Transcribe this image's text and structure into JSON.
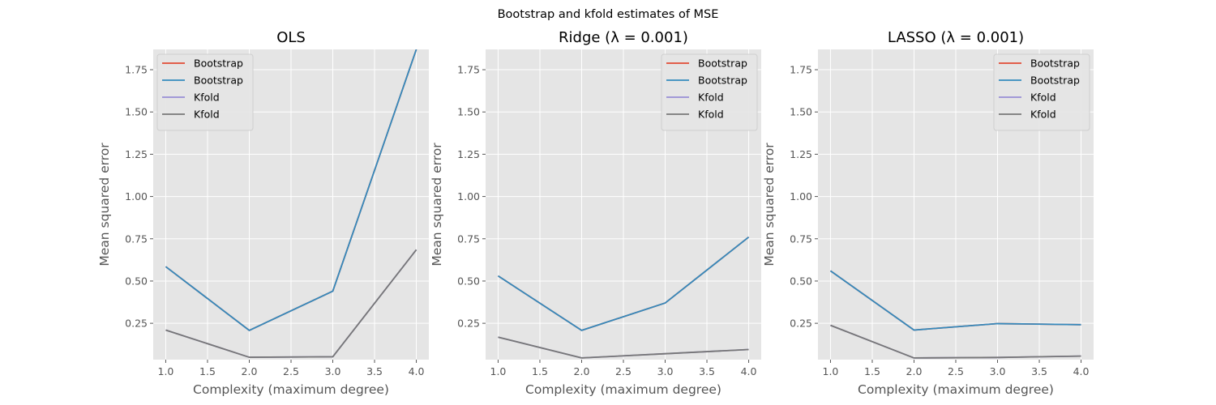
{
  "figure": {
    "suptitle": "Bootstrap and kfold estimates of MSE"
  },
  "chart_data": [
    {
      "type": "line",
      "title": "OLS",
      "xlabel": "Complexity  (maximum degree)",
      "ylabel": "Mean squared error",
      "xlim": [
        0.85,
        4.15
      ],
      "ylim": [
        0.035,
        1.87
      ],
      "x_ticks": [
        "1.0",
        "1.5",
        "2.0",
        "2.5",
        "3.0",
        "3.5",
        "4.0"
      ],
      "y_ticks": [
        "0.25",
        "0.50",
        "0.75",
        "1.00",
        "1.25",
        "1.50",
        "1.75"
      ],
      "grid": true,
      "legend_position": "top-left",
      "x": [
        1.0,
        2.0,
        3.0,
        4.0
      ],
      "series": [
        {
          "name": "Bootstrap",
          "color": "#E24A33",
          "values": [
            0.585,
            0.208,
            0.44,
            1.87
          ]
        },
        {
          "name": "Bootstrap",
          "color": "#348ABD",
          "values": [
            0.585,
            0.208,
            0.44,
            1.87
          ]
        },
        {
          "name": "Kfold",
          "color": "#988ED5",
          "values": [
            0.21,
            0.049,
            0.052,
            0.685
          ]
        },
        {
          "name": "Kfold",
          "color": "#777777",
          "values": [
            0.21,
            0.049,
            0.052,
            0.685
          ]
        }
      ]
    },
    {
      "type": "line",
      "title": "Ridge (λ = 0.001)",
      "xlabel": "Complexity  (maximum degree)",
      "ylabel": "Mean squared error",
      "xlim": [
        0.85,
        4.15
      ],
      "ylim": [
        0.035,
        1.87
      ],
      "x_ticks": [
        "1.0",
        "1.5",
        "2.0",
        "2.5",
        "3.0",
        "3.5",
        "4.0"
      ],
      "y_ticks": [
        "0.25",
        "0.50",
        "0.75",
        "1.00",
        "1.25",
        "1.50",
        "1.75"
      ],
      "grid": true,
      "legend_position": "top-right",
      "x": [
        1.0,
        2.0,
        3.0,
        4.0
      ],
      "series": [
        {
          "name": "Bootstrap",
          "color": "#E24A33",
          "values": [
            0.53,
            0.208,
            0.37,
            0.76
          ]
        },
        {
          "name": "Bootstrap",
          "color": "#348ABD",
          "values": [
            0.53,
            0.208,
            0.37,
            0.76
          ]
        },
        {
          "name": "Kfold",
          "color": "#988ED5",
          "values": [
            0.168,
            0.045,
            0.07,
            0.095
          ]
        },
        {
          "name": "Kfold",
          "color": "#777777",
          "values": [
            0.168,
            0.045,
            0.07,
            0.095
          ]
        }
      ]
    },
    {
      "type": "line",
      "title": "LASSO (λ = 0.001)",
      "xlabel": "Complexity  (maximum degree)",
      "ylabel": "Mean squared error",
      "xlim": [
        0.85,
        4.15
      ],
      "ylim": [
        0.035,
        1.87
      ],
      "x_ticks": [
        "1.0",
        "1.5",
        "2.0",
        "2.5",
        "3.0",
        "3.5",
        "4.0"
      ],
      "y_ticks": [
        "0.25",
        "0.50",
        "0.75",
        "1.00",
        "1.25",
        "1.50",
        "1.75"
      ],
      "grid": true,
      "legend_position": "top-right",
      "x": [
        1.0,
        2.0,
        3.0,
        4.0
      ],
      "series": [
        {
          "name": "Bootstrap",
          "color": "#E24A33",
          "values": [
            0.56,
            0.21,
            0.248,
            0.242
          ]
        },
        {
          "name": "Bootstrap",
          "color": "#348ABD",
          "values": [
            0.56,
            0.21,
            0.248,
            0.242
          ]
        },
        {
          "name": "Kfold",
          "color": "#988ED5",
          "values": [
            0.238,
            0.045,
            0.048,
            0.056
          ]
        },
        {
          "name": "Kfold",
          "color": "#777777",
          "values": [
            0.238,
            0.045,
            0.048,
            0.056
          ]
        }
      ]
    }
  ]
}
